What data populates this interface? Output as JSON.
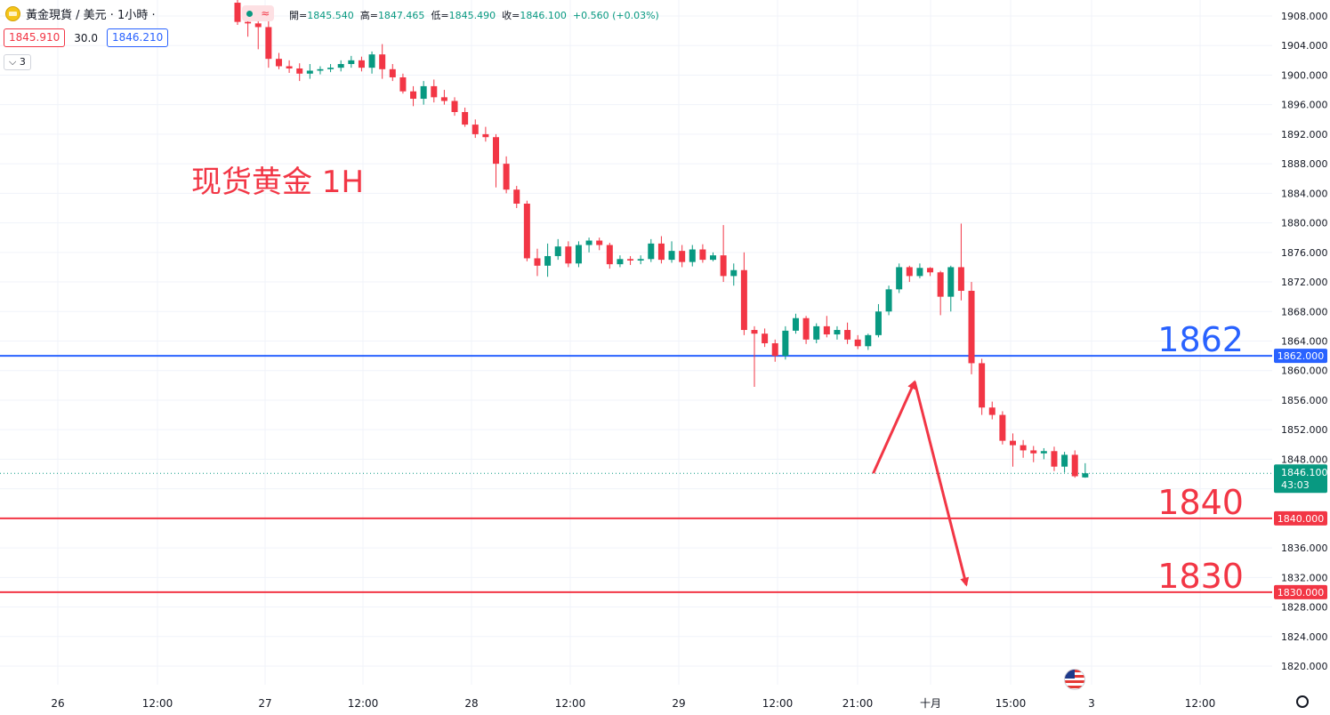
{
  "symbol": {
    "title": "黃金現貨 / 美元 · 1小時 ·",
    "bid": "1845.910",
    "spread": "30.0",
    "ask": "1846.210",
    "indicator_count": "3",
    "ohlc_text": [
      {
        "k": "開=",
        "v": "1845.540"
      },
      {
        "k": "高=",
        "v": "1847.465"
      },
      {
        "k": "低=",
        "v": "1845.490"
      },
      {
        "k": "收=",
        "v": "1846.100"
      },
      {
        "k": "",
        "v": "+0.560 (+0.03%)"
      }
    ]
  },
  "colors": {
    "up": "#089981",
    "down": "#f23645",
    "resistance": "#2962ff",
    "support": "#f23645",
    "annotation": "#f23645",
    "grid": "#f0f3fa"
  },
  "icons": [
    "gold-coin-icon",
    "live-indicator-icon",
    "us-flag-icon",
    "settings-icon"
  ],
  "chart_data": {
    "type": "candlestick",
    "title": "现货黄金 1H",
    "ylim": [
      1818,
      1910
    ],
    "yticks": [
      "1908.000",
      "1904.000",
      "1900.000",
      "1896.000",
      "1892.000",
      "1888.000",
      "1884.000",
      "1880.000",
      "1876.000",
      "1872.000",
      "1868.000",
      "1864.000",
      "1860.000",
      "1856.000",
      "1852.000",
      "1848.000",
      "1844.000",
      "1840.000",
      "1836.000",
      "1832.000",
      "1828.000",
      "1824.000",
      "1820.000"
    ],
    "xticks": [
      "26",
      "12:00",
      "27",
      "12:00",
      "28",
      "12:00",
      "29",
      "12:00",
      "21:00",
      "十月",
      "15:00",
      "3",
      "12:00"
    ],
    "current_price": {
      "value": 1846.1,
      "label": "1846.100",
      "countdown": "43:03"
    },
    "levels": [
      {
        "value": 1862,
        "label": "1862",
        "axis_label": "1862.000",
        "color": "#2962ff"
      },
      {
        "value": 1840,
        "label": "1840",
        "axis_label": "1840.000",
        "color": "#f23645"
      },
      {
        "value": 1830,
        "label": "1830",
        "axis_label": "1830.000",
        "color": "#f23645"
      }
    ],
    "projection": [
      {
        "t": 61.5,
        "price": 1846.1
      },
      {
        "t": 65.5,
        "price": 1858.5
      },
      {
        "t": 70.5,
        "price": 1831.0
      }
    ],
    "candles": [
      {
        "o": 1909.8,
        "h": 1910.5,
        "l": 1906.8,
        "c": 1907.2
      },
      {
        "o": 1907.2,
        "h": 1909.0,
        "l": 1905.2,
        "c": 1907.0
      },
      {
        "o": 1907.0,
        "h": 1908.5,
        "l": 1903.5,
        "c": 1906.5
      },
      {
        "o": 1906.5,
        "h": 1907.8,
        "l": 1901.0,
        "c": 1902.2
      },
      {
        "o": 1902.2,
        "h": 1903.0,
        "l": 1900.8,
        "c": 1901.2
      },
      {
        "o": 1901.2,
        "h": 1902.0,
        "l": 1900.3,
        "c": 1900.9
      },
      {
        "o": 1900.9,
        "h": 1901.6,
        "l": 1899.2,
        "c": 1900.2
      },
      {
        "o": 1900.2,
        "h": 1901.5,
        "l": 1899.5,
        "c": 1900.6
      },
      {
        "o": 1900.6,
        "h": 1901.2,
        "l": 1900.1,
        "c": 1900.8
      },
      {
        "o": 1900.8,
        "h": 1901.5,
        "l": 1900.4,
        "c": 1901.0
      },
      {
        "o": 1901.0,
        "h": 1902.0,
        "l": 1900.5,
        "c": 1901.5
      },
      {
        "o": 1901.5,
        "h": 1902.6,
        "l": 1901.0,
        "c": 1902.0
      },
      {
        "o": 1902.0,
        "h": 1902.5,
        "l": 1900.5,
        "c": 1901.0
      },
      {
        "o": 1901.0,
        "h": 1903.2,
        "l": 1900.2,
        "c": 1902.8
      },
      {
        "o": 1902.8,
        "h": 1904.2,
        "l": 1899.5,
        "c": 1900.8
      },
      {
        "o": 1900.8,
        "h": 1901.5,
        "l": 1899.2,
        "c": 1899.7
      },
      {
        "o": 1899.7,
        "h": 1900.2,
        "l": 1897.5,
        "c": 1897.8
      },
      {
        "o": 1897.8,
        "h": 1898.5,
        "l": 1895.8,
        "c": 1896.8
      },
      {
        "o": 1896.8,
        "h": 1899.2,
        "l": 1896.0,
        "c": 1898.5
      },
      {
        "o": 1898.5,
        "h": 1899.4,
        "l": 1896.3,
        "c": 1897.0
      },
      {
        "o": 1897.0,
        "h": 1898.0,
        "l": 1896.0,
        "c": 1896.5
      },
      {
        "o": 1896.5,
        "h": 1897.0,
        "l": 1894.5,
        "c": 1895.0
      },
      {
        "o": 1895.0,
        "h": 1895.6,
        "l": 1893.0,
        "c": 1893.3
      },
      {
        "o": 1893.3,
        "h": 1894.0,
        "l": 1891.5,
        "c": 1892.0
      },
      {
        "o": 1892.0,
        "h": 1893.0,
        "l": 1891.0,
        "c": 1891.6
      },
      {
        "o": 1891.6,
        "h": 1892.0,
        "l": 1884.8,
        "c": 1888.0
      },
      {
        "o": 1888.0,
        "h": 1889.0,
        "l": 1884.0,
        "c": 1884.5
      },
      {
        "o": 1884.5,
        "h": 1885.0,
        "l": 1882.0,
        "c": 1882.6
      },
      {
        "o": 1882.6,
        "h": 1883.0,
        "l": 1874.8,
        "c": 1875.2
      },
      {
        "o": 1875.2,
        "h": 1876.5,
        "l": 1872.8,
        "c": 1874.2
      },
      {
        "o": 1874.2,
        "h": 1877.2,
        "l": 1872.7,
        "c": 1875.5
      },
      {
        "o": 1875.5,
        "h": 1877.8,
        "l": 1875.0,
        "c": 1876.8
      },
      {
        "o": 1876.8,
        "h": 1877.5,
        "l": 1874.0,
        "c": 1874.5
      },
      {
        "o": 1874.5,
        "h": 1877.5,
        "l": 1874.0,
        "c": 1877.0
      },
      {
        "o": 1877.0,
        "h": 1878.0,
        "l": 1876.0,
        "c": 1877.6
      },
      {
        "o": 1877.6,
        "h": 1878.0,
        "l": 1876.3,
        "c": 1877.0
      },
      {
        "o": 1877.0,
        "h": 1877.3,
        "l": 1873.8,
        "c": 1874.4
      },
      {
        "o": 1874.4,
        "h": 1875.6,
        "l": 1874.0,
        "c": 1875.1
      },
      {
        "o": 1875.1,
        "h": 1875.5,
        "l": 1874.3,
        "c": 1874.9
      },
      {
        "o": 1874.9,
        "h": 1875.6,
        "l": 1874.4,
        "c": 1875.1
      },
      {
        "o": 1875.1,
        "h": 1877.8,
        "l": 1874.7,
        "c": 1877.2
      },
      {
        "o": 1877.2,
        "h": 1878.2,
        "l": 1874.5,
        "c": 1875.0
      },
      {
        "o": 1875.0,
        "h": 1877.5,
        "l": 1874.6,
        "c": 1876.2
      },
      {
        "o": 1876.2,
        "h": 1877.0,
        "l": 1874.0,
        "c": 1874.7
      },
      {
        "o": 1874.7,
        "h": 1877.0,
        "l": 1874.1,
        "c": 1876.4
      },
      {
        "o": 1876.4,
        "h": 1877.1,
        "l": 1874.6,
        "c": 1875.0
      },
      {
        "o": 1875.0,
        "h": 1876.0,
        "l": 1874.8,
        "c": 1875.6
      },
      {
        "o": 1875.6,
        "h": 1879.7,
        "l": 1872.0,
        "c": 1872.8
      },
      {
        "o": 1872.8,
        "h": 1874.5,
        "l": 1871.5,
        "c": 1873.6
      },
      {
        "o": 1873.6,
        "h": 1876.0,
        "l": 1864.8,
        "c": 1865.5
      },
      {
        "o": 1865.5,
        "h": 1866.0,
        "l": 1857.8,
        "c": 1865.0
      },
      {
        "o": 1865.0,
        "h": 1865.7,
        "l": 1863.2,
        "c": 1863.7
      },
      {
        "o": 1863.7,
        "h": 1864.2,
        "l": 1861.2,
        "c": 1862.0
      },
      {
        "o": 1862.0,
        "h": 1866.0,
        "l": 1861.5,
        "c": 1865.4
      },
      {
        "o": 1865.4,
        "h": 1867.7,
        "l": 1865.0,
        "c": 1867.1
      },
      {
        "o": 1867.1,
        "h": 1867.4,
        "l": 1863.6,
        "c": 1864.2
      },
      {
        "o": 1864.2,
        "h": 1866.4,
        "l": 1863.7,
        "c": 1866.0
      },
      {
        "o": 1866.0,
        "h": 1867.4,
        "l": 1864.5,
        "c": 1864.9
      },
      {
        "o": 1864.9,
        "h": 1866.0,
        "l": 1864.2,
        "c": 1865.5
      },
      {
        "o": 1865.5,
        "h": 1866.5,
        "l": 1863.6,
        "c": 1864.2
      },
      {
        "o": 1864.2,
        "h": 1864.8,
        "l": 1862.9,
        "c": 1863.3
      },
      {
        "o": 1863.3,
        "h": 1865.0,
        "l": 1862.8,
        "c": 1864.8
      }
    ],
    "candles_part2": [
      {
        "o": 1864.8,
        "h": 1869.0,
        "l": 1864.5,
        "c": 1868.0
      },
      {
        "o": 1868.0,
        "h": 1871.5,
        "l": 1867.5,
        "c": 1871.0
      },
      {
        "o": 1871.0,
        "h": 1874.5,
        "l": 1870.5,
        "c": 1874.0
      },
      {
        "o": 1874.0,
        "h": 1874.2,
        "l": 1872.0,
        "c": 1872.8
      },
      {
        "o": 1872.8,
        "h": 1874.5,
        "l": 1872.5,
        "c": 1873.9
      },
      {
        "o": 1873.9,
        "h": 1874.0,
        "l": 1872.8,
        "c": 1873.3
      },
      {
        "o": 1873.3,
        "h": 1873.5,
        "l": 1867.5,
        "c": 1870.0
      },
      {
        "o": 1870.0,
        "h": 1874.2,
        "l": 1868.0,
        "c": 1874.0
      },
      {
        "o": 1874.0,
        "h": 1879.9,
        "l": 1869.5,
        "c": 1870.8
      },
      {
        "o": 1870.8,
        "h": 1872.0,
        "l": 1859.5,
        "c": 1861.0
      },
      {
        "o": 1861.0,
        "h": 1861.6,
        "l": 1854.0,
        "c": 1855.0
      },
      {
        "o": 1855.0,
        "h": 1855.8,
        "l": 1853.4,
        "c": 1854.0
      },
      {
        "o": 1854.0,
        "h": 1854.5,
        "l": 1850.0,
        "c": 1850.5
      },
      {
        "o": 1850.5,
        "h": 1851.5,
        "l": 1847.0,
        "c": 1849.9
      },
      {
        "o": 1849.9,
        "h": 1850.6,
        "l": 1848.2,
        "c": 1849.2
      },
      {
        "o": 1849.2,
        "h": 1849.8,
        "l": 1847.6,
        "c": 1848.8
      },
      {
        "o": 1848.8,
        "h": 1849.5,
        "l": 1848.0,
        "c": 1849.1
      },
      {
        "o": 1849.1,
        "h": 1849.7,
        "l": 1846.4,
        "c": 1847.0
      },
      {
        "o": 1847.0,
        "h": 1849.0,
        "l": 1846.2,
        "c": 1848.6
      },
      {
        "o": 1848.6,
        "h": 1849.2,
        "l": 1845.5,
        "c": 1845.7
      },
      {
        "o": 1845.54,
        "h": 1847.465,
        "l": 1845.49,
        "c": 1846.1
      }
    ]
  }
}
